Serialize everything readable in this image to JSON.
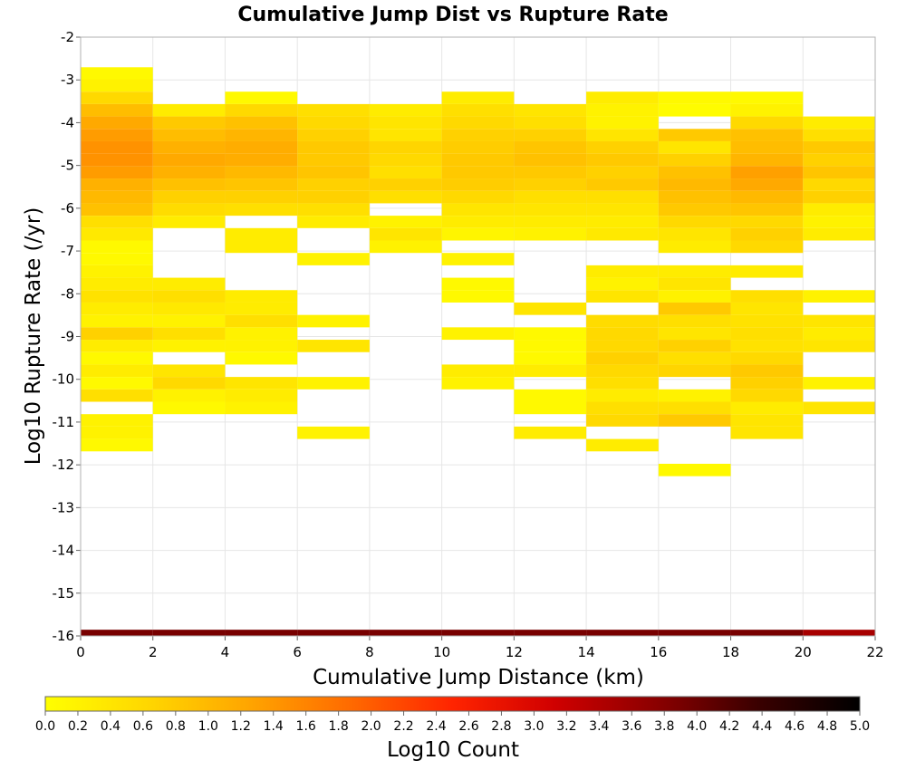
{
  "chart_data": {
    "type": "heatmap",
    "title": "Cumulative Jump Dist vs Rupture Rate",
    "xlabel": "Cumulative Jump Distance (km)",
    "ylabel": "Log10 Rupture Rate (/yr)",
    "colorbar_label": "Log10 Count",
    "xlim": [
      0,
      22
    ],
    "ylim": [
      -16,
      -2
    ],
    "xticks": [
      "0",
      "2",
      "4",
      "6",
      "8",
      "10",
      "12",
      "14",
      "16",
      "18",
      "20",
      "22"
    ],
    "yticks": [
      "-2",
      "-3",
      "-4",
      "-5",
      "-6",
      "-7",
      "-8",
      "-9",
      "-10",
      "-11",
      "-12",
      "-13",
      "-14",
      "-15",
      "-16"
    ],
    "colorbar_range": [
      0,
      5
    ],
    "colorbar_ticks": [
      "0.0",
      "0.2",
      "0.4",
      "0.6",
      "0.8",
      "1.0",
      "1.2",
      "1.4",
      "1.6",
      "1.8",
      "2.0",
      "2.2",
      "2.4",
      "2.6",
      "2.8",
      "3.0",
      "3.2",
      "3.4",
      "3.6",
      "3.8",
      "4.0",
      "4.2",
      "4.4",
      "4.6",
      "4.8",
      "5.0"
    ],
    "colormap": [
      "#ffff00",
      "#ffd700",
      "#ffa500",
      "#ff6a00",
      "#ff2400",
      "#d00000",
      "#8b0000",
      "#3a0000",
      "#000000"
    ],
    "grid": true,
    "x_bin_width": 2,
    "y_bin_height": 0.29,
    "columns": [
      {
        "x": [
          0,
          2
        ],
        "cells": [
          [
            -2.85,
            0.1
          ],
          [
            -3.13,
            0.2
          ],
          [
            -3.42,
            0.6
          ],
          [
            -3.71,
            0.95
          ],
          [
            -4.0,
            1.2
          ],
          [
            -4.29,
            1.35
          ],
          [
            -4.58,
            1.45
          ],
          [
            -4.87,
            1.45
          ],
          [
            -5.16,
            1.35
          ],
          [
            -5.45,
            1.1
          ],
          [
            -5.74,
            1.0
          ],
          [
            -6.03,
            0.9
          ],
          [
            -6.32,
            0.5
          ],
          [
            -6.61,
            0.35
          ],
          [
            -6.9,
            0.1
          ],
          [
            -7.19,
            0.1
          ],
          [
            -7.48,
            0.2
          ],
          [
            -7.77,
            0.3
          ],
          [
            -8.06,
            0.45
          ],
          [
            -8.35,
            0.3
          ],
          [
            -8.64,
            0.2
          ],
          [
            -8.93,
            0.7
          ],
          [
            -9.22,
            0.3
          ],
          [
            -9.51,
            0.1
          ],
          [
            -9.8,
            0.3
          ],
          [
            -10.09,
            0.1
          ],
          [
            -10.38,
            0.5
          ],
          [
            -10.96,
            0.2
          ],
          [
            -11.25,
            0.2
          ],
          [
            -11.54,
            0.1
          ],
          [
            -16.0,
            3.9
          ]
        ]
      },
      {
        "x": [
          2,
          4
        ],
        "cells": [
          [
            -3.71,
            0.3
          ],
          [
            -4.0,
            0.8
          ],
          [
            -4.29,
            0.95
          ],
          [
            -4.58,
            1.1
          ],
          [
            -4.87,
            1.2
          ],
          [
            -5.16,
            1.1
          ],
          [
            -5.45,
            0.9
          ],
          [
            -5.74,
            0.7
          ],
          [
            -6.03,
            0.55
          ],
          [
            -6.32,
            0.3
          ],
          [
            -7.77,
            0.3
          ],
          [
            -8.06,
            0.5
          ],
          [
            -8.35,
            0.35
          ],
          [
            -8.64,
            0.2
          ],
          [
            -8.93,
            0.5
          ],
          [
            -9.22,
            0.2
          ],
          [
            -9.8,
            0.4
          ],
          [
            -10.09,
            0.6
          ],
          [
            -10.38,
            0.2
          ],
          [
            -10.67,
            0.1
          ],
          [
            -16.0,
            3.9
          ]
        ]
      },
      {
        "x": [
          4,
          6
        ],
        "cells": [
          [
            -3.42,
            0.1
          ],
          [
            -3.71,
            0.6
          ],
          [
            -4.0,
            0.9
          ],
          [
            -4.29,
            1.05
          ],
          [
            -4.58,
            1.15
          ],
          [
            -4.87,
            1.15
          ],
          [
            -5.16,
            1.0
          ],
          [
            -5.45,
            0.85
          ],
          [
            -5.74,
            0.7
          ],
          [
            -6.03,
            0.5
          ],
          [
            -6.61,
            0.3
          ],
          [
            -6.9,
            0.3
          ],
          [
            -8.06,
            0.3
          ],
          [
            -8.35,
            0.3
          ],
          [
            -8.64,
            0.5
          ],
          [
            -8.93,
            0.2
          ],
          [
            -9.22,
            0.2
          ],
          [
            -9.51,
            0.1
          ],
          [
            -10.09,
            0.4
          ],
          [
            -10.38,
            0.3
          ],
          [
            -10.67,
            0.2
          ],
          [
            -16.0,
            3.9
          ]
        ]
      },
      {
        "x": [
          6,
          8
        ],
        "cells": [
          [
            -3.71,
            0.5
          ],
          [
            -4.0,
            0.6
          ],
          [
            -4.29,
            0.7
          ],
          [
            -4.58,
            0.8
          ],
          [
            -4.87,
            0.8
          ],
          [
            -5.16,
            0.85
          ],
          [
            -5.45,
            0.7
          ],
          [
            -5.74,
            0.7
          ],
          [
            -6.03,
            0.5
          ],
          [
            -6.32,
            0.3
          ],
          [
            -7.19,
            0.2
          ],
          [
            -8.64,
            0.2
          ],
          [
            -9.22,
            0.4
          ],
          [
            -10.09,
            0.2
          ],
          [
            -11.25,
            0.2
          ],
          [
            -16.0,
            3.9
          ]
        ]
      },
      {
        "x": [
          8,
          10
        ],
        "cells": [
          [
            -3.71,
            0.3
          ],
          [
            -4.0,
            0.4
          ],
          [
            -4.29,
            0.4
          ],
          [
            -4.58,
            0.65
          ],
          [
            -4.87,
            0.6
          ],
          [
            -5.16,
            0.5
          ],
          [
            -5.45,
            0.7
          ],
          [
            -5.74,
            0.5
          ],
          [
            -6.32,
            0.2
          ],
          [
            -6.61,
            0.4
          ],
          [
            -6.9,
            0.2
          ],
          [
            -16.0,
            3.9
          ]
        ]
      },
      {
        "x": [
          10,
          12
        ],
        "cells": [
          [
            -3.42,
            0.3
          ],
          [
            -3.71,
            0.5
          ],
          [
            -4.0,
            0.6
          ],
          [
            -4.29,
            0.7
          ],
          [
            -4.58,
            0.75
          ],
          [
            -4.87,
            0.8
          ],
          [
            -5.16,
            0.8
          ],
          [
            -5.45,
            0.75
          ],
          [
            -5.74,
            0.6
          ],
          [
            -6.03,
            0.4
          ],
          [
            -6.32,
            0.3
          ],
          [
            -6.61,
            0.15
          ],
          [
            -7.19,
            0.2
          ],
          [
            -7.77,
            0.1
          ],
          [
            -8.06,
            0.1
          ],
          [
            -8.93,
            0.2
          ],
          [
            -9.8,
            0.3
          ],
          [
            -10.09,
            0.2
          ],
          [
            -16.0,
            3.9
          ]
        ]
      },
      {
        "x": [
          12,
          14
        ],
        "cells": [
          [
            -3.71,
            0.4
          ],
          [
            -4.0,
            0.5
          ],
          [
            -4.29,
            0.7
          ],
          [
            -4.58,
            0.85
          ],
          [
            -4.87,
            0.9
          ],
          [
            -5.16,
            0.8
          ],
          [
            -5.45,
            0.7
          ],
          [
            -5.74,
            0.5
          ],
          [
            -6.03,
            0.4
          ],
          [
            -6.32,
            0.3
          ],
          [
            -6.61,
            0.2
          ],
          [
            -8.35,
            0.4
          ],
          [
            -8.93,
            0.1
          ],
          [
            -9.22,
            0.1
          ],
          [
            -9.51,
            0.1
          ],
          [
            -9.8,
            0.3
          ],
          [
            -10.38,
            0.1
          ],
          [
            -10.67,
            0.1
          ],
          [
            -11.25,
            0.3
          ],
          [
            -16.0,
            3.9
          ]
        ]
      },
      {
        "x": [
          14,
          16
        ],
        "cells": [
          [
            -3.42,
            0.3
          ],
          [
            -3.71,
            0.2
          ],
          [
            -4.0,
            0.2
          ],
          [
            -4.29,
            0.4
          ],
          [
            -4.58,
            0.7
          ],
          [
            -4.87,
            0.8
          ],
          [
            -5.16,
            0.7
          ],
          [
            -5.45,
            0.8
          ],
          [
            -5.74,
            0.5
          ],
          [
            -6.03,
            0.4
          ],
          [
            -6.32,
            0.3
          ],
          [
            -6.61,
            0.35
          ],
          [
            -7.48,
            0.3
          ],
          [
            -7.77,
            0.2
          ],
          [
            -8.06,
            0.4
          ],
          [
            -8.64,
            0.55
          ],
          [
            -8.93,
            0.6
          ],
          [
            -9.22,
            0.6
          ],
          [
            -9.51,
            0.7
          ],
          [
            -9.8,
            0.6
          ],
          [
            -10.09,
            0.5
          ],
          [
            -10.38,
            0.3
          ],
          [
            -10.67,
            0.5
          ],
          [
            -10.96,
            0.6
          ],
          [
            -11.54,
            0.3
          ],
          [
            -16.0,
            3.9
          ]
        ]
      },
      {
        "x": [
          16,
          18
        ],
        "cells": [
          [
            -3.42,
            0.1
          ],
          [
            -3.71,
            0.05
          ],
          [
            -4.29,
            0.8
          ],
          [
            -4.58,
            0.4
          ],
          [
            -4.87,
            0.7
          ],
          [
            -5.16,
            0.9
          ],
          [
            -5.45,
            1.0
          ],
          [
            -5.74,
            0.9
          ],
          [
            -6.03,
            0.8
          ],
          [
            -6.32,
            0.6
          ],
          [
            -6.61,
            0.4
          ],
          [
            -6.9,
            0.3
          ],
          [
            -7.48,
            0.3
          ],
          [
            -7.77,
            0.4
          ],
          [
            -8.06,
            0.2
          ],
          [
            -8.35,
            0.8
          ],
          [
            -8.64,
            0.5
          ],
          [
            -8.93,
            0.4
          ],
          [
            -9.22,
            0.7
          ],
          [
            -9.51,
            0.5
          ],
          [
            -9.8,
            0.65
          ],
          [
            -10.38,
            0.2
          ],
          [
            -10.67,
            0.5
          ],
          [
            -10.96,
            0.8
          ],
          [
            -12.12,
            0.1
          ],
          [
            -16.0,
            3.9
          ]
        ]
      },
      {
        "x": [
          18,
          20
        ],
        "cells": [
          [
            -3.42,
            0.1
          ],
          [
            -3.71,
            0.2
          ],
          [
            -4.0,
            0.6
          ],
          [
            -4.29,
            0.9
          ],
          [
            -4.58,
            0.95
          ],
          [
            -4.87,
            1.05
          ],
          [
            -5.16,
            1.3
          ],
          [
            -5.45,
            1.2
          ],
          [
            -5.74,
            1.0
          ],
          [
            -6.03,
            0.85
          ],
          [
            -6.32,
            0.6
          ],
          [
            -6.61,
            0.7
          ],
          [
            -6.9,
            0.6
          ],
          [
            -7.48,
            0.3
          ],
          [
            -8.06,
            0.5
          ],
          [
            -8.35,
            0.4
          ],
          [
            -8.64,
            0.45
          ],
          [
            -8.93,
            0.5
          ],
          [
            -9.22,
            0.45
          ],
          [
            -9.51,
            0.6
          ],
          [
            -9.8,
            0.8
          ],
          [
            -10.09,
            0.7
          ],
          [
            -10.38,
            0.6
          ],
          [
            -10.67,
            0.3
          ],
          [
            -10.96,
            0.4
          ],
          [
            -11.25,
            0.4
          ],
          [
            -16.0,
            3.9
          ]
        ]
      },
      {
        "x": [
          20,
          22
        ],
        "cells": [
          [
            -4.0,
            0.3
          ],
          [
            -4.29,
            0.5
          ],
          [
            -4.58,
            0.8
          ],
          [
            -4.87,
            0.7
          ],
          [
            -5.16,
            0.85
          ],
          [
            -5.45,
            0.6
          ],
          [
            -5.74,
            0.7
          ],
          [
            -6.03,
            0.3
          ],
          [
            -6.32,
            0.2
          ],
          [
            -6.61,
            0.3
          ],
          [
            -8.06,
            0.2
          ],
          [
            -8.64,
            0.4
          ],
          [
            -8.93,
            0.3
          ],
          [
            -9.22,
            0.4
          ],
          [
            -10.09,
            0.2
          ],
          [
            -10.67,
            0.4
          ],
          [
            -16.0,
            3.5
          ]
        ]
      }
    ]
  }
}
